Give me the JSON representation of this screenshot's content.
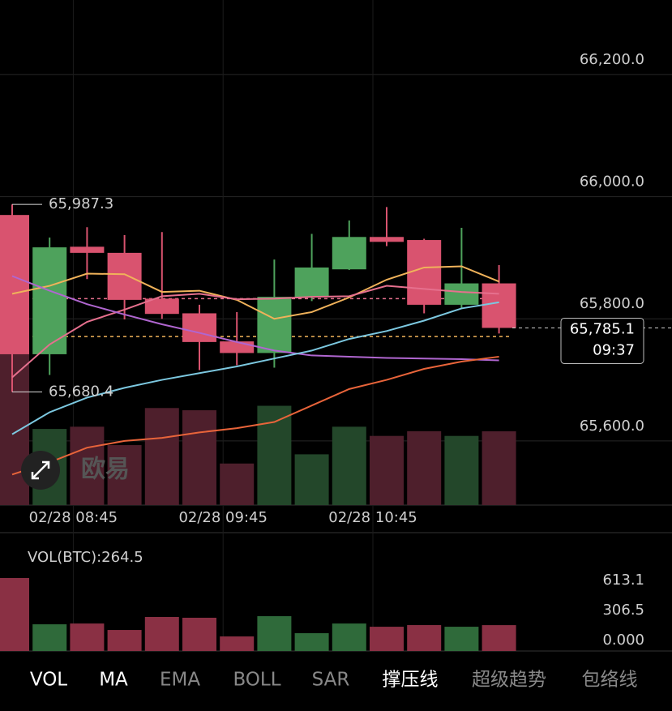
{
  "chart_data": {
    "type": "candlestick",
    "categories": [
      null,
      null,
      "02/28 08:45",
      null,
      null,
      null,
      "02/28 09:45",
      null,
      null,
      null,
      "02/28 10:45",
      null,
      null,
      null
    ],
    "open": [
      65970,
      65742,
      65918,
      65908,
      65833,
      65809,
      65763,
      65744,
      65836,
      65881,
      65934,
      65929,
      65823,
      65858
    ],
    "high": [
      65987.3,
      65933,
      65950,
      65937,
      65942,
      65823,
      65811,
      65897,
      65939,
      65961,
      65983,
      65931,
      65949,
      65888
    ],
    "low": [
      65680.4,
      65708,
      65865,
      65799,
      65800,
      65716,
      65724,
      65720,
      65829,
      65880,
      65919,
      65809,
      65816,
      65776
    ],
    "close": [
      65742,
      65917,
      65908,
      65831,
      65808,
      65762,
      65744,
      65836,
      65884,
      65934,
      65926,
      65823,
      65858,
      65785.1
    ],
    "up_color": "#4ea25c",
    "down_color": "#d9536f",
    "ylim": [
      65495,
      66322
    ],
    "yticks": [
      {
        "value": 66200,
        "label": "66,200.0"
      },
      {
        "value": 66000,
        "label": "66,000.0"
      },
      {
        "value": 65800,
        "label": "65,800.0"
      },
      {
        "value": 65600,
        "label": "65,600.0"
      }
    ],
    "high_label": "65,987.3",
    "low_label": "65,680.4",
    "last_label": "65,785.1",
    "countdown": "09:37",
    "lines": [
      {
        "color": "#f0b25a",
        "values": [
          65841,
          65854,
          65874,
          65873,
          65844,
          65846,
          65831,
          65800,
          65811,
          65835,
          65864,
          65884,
          65886,
          65861
        ]
      },
      {
        "color": "#e6708e",
        "values": [
          65704,
          65758,
          65795,
          65815,
          65837,
          65841,
          65832,
          65833,
          65836,
          65837,
          65854,
          65849,
          65844,
          65841
        ]
      },
      {
        "color": "#b066d0",
        "values": [
          65870,
          65846,
          65824,
          65807,
          65791,
          65777,
          65762,
          65748,
          65740,
          65738,
          65736,
          65735,
          65734,
          65732
        ]
      },
      {
        "color": "#7cc8e0",
        "values": [
          65611,
          65647,
          65671,
          65687,
          65700,
          65711,
          65722,
          65735,
          65748,
          65767,
          65780,
          65797,
          65817,
          65827
        ]
      },
      {
        "color": "#e8643a",
        "values": [
          65545,
          65565,
          65589,
          65600,
          65605,
          65614,
          65621,
          65631,
          65658,
          65685,
          65700,
          65718,
          65730,
          65738
        ]
      }
    ],
    "levels": [
      {
        "value": 65833,
        "color": "#e6708e"
      },
      {
        "value": 65771,
        "color": "#f0b25a"
      }
    ],
    "volume": {
      "title": "VOL(BTC):",
      "current": 264.5,
      "values": [
        746,
        273,
        281,
        215,
        348,
        340,
        149,
        356,
        182,
        281,
        248,
        265,
        248,
        264.5
      ],
      "ylim": [
        0,
        1210
      ],
      "yticks": [
        613.1,
        306.5,
        {
          "value": 0,
          "label": "0.000"
        }
      ]
    }
  },
  "menu": [
    "VOL",
    "MA",
    "EMA",
    "BOLL",
    "SAR",
    "撑压线",
    "超级趋势",
    "包络线"
  ],
  "menu_active": [
    true,
    true,
    false,
    false,
    false,
    true,
    false,
    false
  ],
  "watermark": "欧易"
}
